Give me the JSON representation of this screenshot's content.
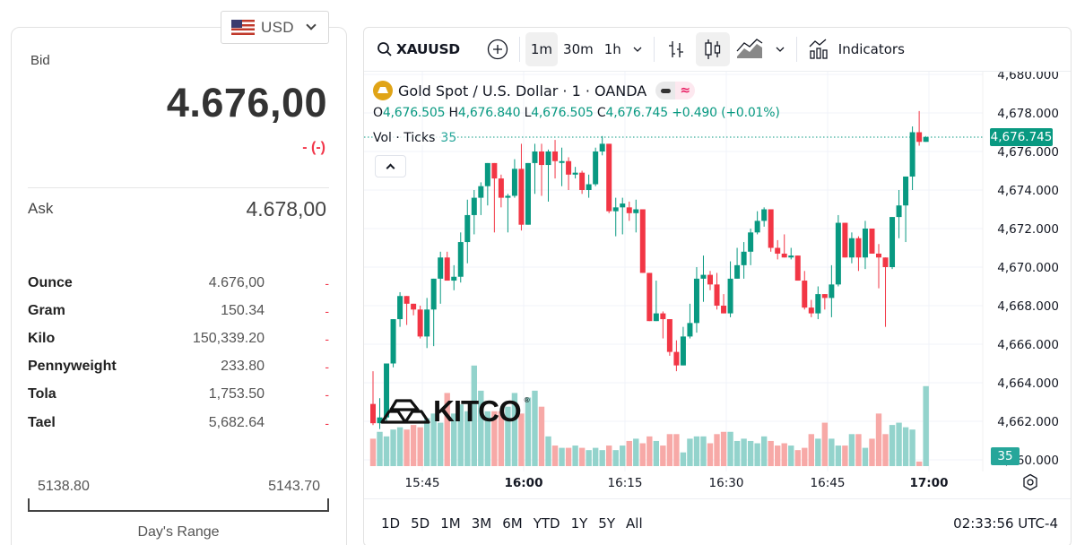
{
  "quote": {
    "currency": "USD",
    "bid_label": "Bid",
    "bid_value": "4.676,00",
    "bid_change": "- (-)",
    "ask_label": "Ask",
    "ask_value": "4.678,00",
    "units": [
      {
        "name": "Ounce",
        "value": "4.676,00",
        "change": "-"
      },
      {
        "name": "Gram",
        "value": "150.34",
        "change": "-"
      },
      {
        "name": "Kilo",
        "value": "150,339.20",
        "change": "-"
      },
      {
        "name": "Pennyweight",
        "value": "233.80",
        "change": "-"
      },
      {
        "name": "Tola",
        "value": "1,753.50",
        "change": "-"
      },
      {
        "name": "Tael",
        "value": "5,682.64",
        "change": "-"
      }
    ],
    "day_range": {
      "low": "5138.80",
      "high": "5143.70",
      "caption": "Day's Range"
    }
  },
  "chart": {
    "toolbar": {
      "symbol": "XAUUSD",
      "intervals": [
        "1m",
        "30m",
        "1h"
      ],
      "active_interval": "1m",
      "indicators_label": "Indicators"
    },
    "legend": {
      "title": "Gold Spot / U.S. Dollar · 1 · OANDA",
      "open_label": "O",
      "open": "4,676.505",
      "high_label": "H",
      "high": "4,676.840",
      "low_label": "L",
      "low": "4,676.505",
      "close_label": "C",
      "close": "4,676.745",
      "change": "+0.490 (+0.01%)",
      "vol_label": "Vol · Ticks",
      "vol_value": "35"
    },
    "last_price_tag": "4,676.745",
    "vol_tag": "35",
    "logo": "KITCO",
    "price_axis": [
      "4,680.000",
      "4,678.000",
      "4,676.000",
      "4,674.000",
      "4,672.000",
      "4,670.000",
      "4,668.000",
      "4,666.000",
      "4,664.000",
      "4,662.000",
      "4,660.000"
    ],
    "time_axis": [
      {
        "label": "15:45",
        "bold": false
      },
      {
        "label": "16:00",
        "bold": true
      },
      {
        "label": "16:15",
        "bold": false
      },
      {
        "label": "16:30",
        "bold": false
      },
      {
        "label": "16:45",
        "bold": false
      },
      {
        "label": "17:00",
        "bold": true
      }
    ],
    "ranges": [
      "1D",
      "5D",
      "1M",
      "3M",
      "6M",
      "YTD",
      "1Y",
      "5Y",
      "All"
    ],
    "clock": "02:33:56 UTC-4",
    "colors": {
      "up": "#089981",
      "down": "#f23645",
      "vol_up": "#93d3cc",
      "vol_down": "#f7a9a7",
      "grid": "#f0f3fa"
    }
  },
  "chart_data": {
    "type": "candlestick",
    "title": "Gold Spot / U.S. Dollar · 1 · OANDA",
    "ylim": [
      4660,
      4680
    ],
    "x_ticks": [
      "15:45",
      "16:00",
      "16:15",
      "16:30",
      "16:45",
      "17:00"
    ],
    "candles": [
      [
        4662.9,
        4664.6,
        4661.8,
        4661.9,
        12
      ],
      [
        4661.9,
        4663.2,
        4661.6,
        4662.2,
        15
      ],
      [
        4662.2,
        4665.0,
        4661.9,
        4665.0,
        13
      ],
      [
        4665.0,
        4667.2,
        4664.8,
        4667.3,
        16
      ],
      [
        4667.3,
        4668.7,
        4666.9,
        4668.5,
        17
      ],
      [
        4668.5,
        4668.3,
        4667.0,
        4668.1,
        16
      ],
      [
        4668.1,
        4668.1,
        4667.5,
        4667.8,
        18
      ],
      [
        4667.8,
        4668.0,
        4666.3,
        4666.4,
        17
      ],
      [
        4666.4,
        4668.4,
        4665.8,
        4667.8,
        21
      ],
      [
        4667.8,
        4669.0,
        4665.9,
        4669.4,
        23
      ],
      [
        4669.4,
        4670.8,
        4668.1,
        4670.5,
        19
      ],
      [
        4670.5,
        4670.8,
        4669.4,
        4669.3,
        32
      ],
      [
        4669.3,
        4670.1,
        4668.8,
        4669.5,
        23
      ],
      [
        4669.5,
        4671.8,
        4669.2,
        4671.3,
        27
      ],
      [
        4671.3,
        4673.5,
        4670.2,
        4672.7,
        24
      ],
      [
        4672.7,
        4674.0,
        4671.7,
        4673.6,
        44
      ],
      [
        4673.6,
        4674.4,
        4672.7,
        4674.2,
        33
      ],
      [
        4674.2,
        4675.4,
        4673.2,
        4675.4,
        24
      ],
      [
        4675.4,
        4675.4,
        4671.8,
        4674.6,
        24
      ],
      [
        4674.6,
        4674.8,
        4673.1,
        4673.6,
        24
      ],
      [
        4673.6,
        4673.8,
        4671.8,
        4673.7,
        26
      ],
      [
        4673.7,
        4675.6,
        4673.6,
        4675.1,
        32
      ],
      [
        4675.1,
        4676.4,
        4671.9,
        4672.2,
        23
      ],
      [
        4672.2,
        4675.3,
        4672.3,
        4675.4,
        30
      ],
      [
        4675.4,
        4676.4,
        4673.8,
        4676.0,
        33
      ],
      [
        4676.0,
        4676.4,
        4673.7,
        4675.3,
        26
      ],
      [
        4675.3,
        4676.1,
        4673.4,
        4676.0,
        13
      ],
      [
        4676.0,
        4676.6,
        4674.6,
        4675.5,
        9
      ],
      [
        4675.5,
        4676.2,
        4674.2,
        4675.5,
        8
      ],
      [
        4675.5,
        4675.7,
        4674.0,
        4674.8,
        8
      ],
      [
        4674.8,
        4675.2,
        4674.6,
        4674.9,
        9
      ],
      [
        4674.9,
        4675.0,
        4673.8,
        4674.0,
        8
      ],
      [
        4674.0,
        4674.8,
        4673.6,
        4674.3,
        7
      ],
      [
        4674.3,
        4676.2,
        4674.2,
        4676.0,
        8
      ],
      [
        4676.0,
        4676.8,
        4675.8,
        4676.4,
        7
      ],
      [
        4676.4,
        4676.4,
        4672.8,
        4672.9,
        9
      ],
      [
        4672.9,
        4673.6,
        4671.6,
        4673.1,
        7
      ],
      [
        4673.1,
        4673.6,
        4671.7,
        4673.3,
        9
      ],
      [
        4673.1,
        4673.4,
        4672.4,
        4672.8,
        11
      ],
      [
        4672.8,
        4673.5,
        4671.8,
        4673.0,
        12
      ],
      [
        4673.0,
        4673.0,
        4669.8,
        4669.7,
        10
      ],
      [
        4669.7,
        4669.4,
        4667.6,
        4667.2,
        13
      ],
      [
        4667.2,
        4669.3,
        4667.3,
        4667.6,
        11
      ],
      [
        4667.6,
        4667.7,
        4666.3,
        4667.3,
        9
      ],
      [
        4667.3,
        4667.2,
        4665.4,
        4665.6,
        14
      ],
      [
        4665.6,
        4666.2,
        4664.6,
        4664.9,
        14
      ],
      [
        4664.9,
        4666.9,
        4664.9,
        4666.4,
        6
      ],
      [
        4666.4,
        4668.1,
        4666.3,
        4667.1,
        12
      ],
      [
        4667.1,
        4670.0,
        4666.6,
        4669.4,
        13
      ],
      [
        4669.4,
        4670.6,
        4668.2,
        4669.6,
        13
      ],
      [
        4669.6,
        4669.8,
        4668.8,
        4669.1,
        10
      ],
      [
        4669.1,
        4669.7,
        4667.8,
        4668.0,
        14
      ],
      [
        4668.0,
        4668.6,
        4667.9,
        4667.6,
        15
      ],
      [
        4667.6,
        4670.3,
        4667.4,
        4669.4,
        15
      ],
      [
        4669.4,
        4671.0,
        4669.4,
        4670.1,
        11
      ],
      [
        4670.1,
        4671.3,
        4669.4,
        4670.8,
        12
      ],
      [
        4670.8,
        4672.0,
        4670.1,
        4671.8,
        11
      ],
      [
        4671.8,
        4672.9,
        4671.7,
        4672.4,
        10
      ],
      [
        4672.4,
        4673.1,
        4672.1,
        4673.0,
        13
      ],
      [
        4673.0,
        4673.0,
        4670.8,
        4671.0,
        11
      ],
      [
        4671.0,
        4671.4,
        4670.4,
        4670.7,
        9
      ],
      [
        4670.7,
        4671.7,
        4670.6,
        4670.5,
        10
      ],
      [
        4670.5,
        4671.0,
        4670.4,
        4670.6,
        9
      ],
      [
        4670.6,
        4670.6,
        4669.4,
        4669.3,
        7
      ],
      [
        4669.3,
        4669.8,
        4667.8,
        4667.9,
        8
      ],
      [
        4667.9,
        4668.3,
        4667.4,
        4667.6,
        14
      ],
      [
        4667.6,
        4669.0,
        4667.3,
        4668.6,
        12
      ],
      [
        4668.6,
        4668.6,
        4667.8,
        4668.4,
        19
      ],
      [
        4668.4,
        4670.1,
        4667.4,
        4669.1,
        12
      ],
      [
        4669.1,
        4672.7,
        4669.0,
        4672.3,
        9
      ],
      [
        4672.3,
        4672.3,
        4670.6,
        4670.5,
        9
      ],
      [
        4670.5,
        4671.8,
        4670.2,
        4671.5,
        14
      ],
      [
        4671.5,
        4671.6,
        4669.8,
        4670.5,
        14
      ],
      [
        4670.5,
        4672.4,
        4669.9,
        4672.0,
        8
      ],
      [
        4672.0,
        4672.0,
        4670.8,
        4670.7,
        12
      ],
      [
        4670.7,
        4671.2,
        4668.9,
        4670.5,
        23
      ],
      [
        4670.5,
        4670.1,
        4666.9,
        4670.0,
        14
      ],
      [
        4670.0,
        4672.5,
        4669.9,
        4672.6,
        18
      ],
      [
        4672.6,
        4674.0,
        4671.5,
        4673.2,
        19
      ],
      [
        4673.2,
        4674.3,
        4671.3,
        4674.7,
        17
      ],
      [
        4674.7,
        4677.3,
        4674.0,
        4677.0,
        16
      ],
      [
        4677.0,
        4678.1,
        4676.3,
        4676.5,
        2
      ],
      [
        4676.5,
        4676.8,
        4676.5,
        4676.745,
        35
      ]
    ]
  }
}
